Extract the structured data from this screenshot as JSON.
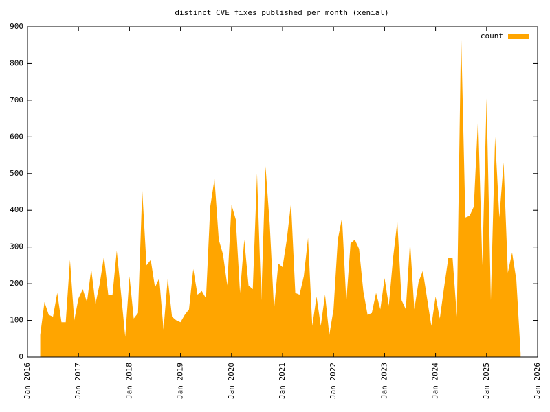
{
  "chart_data": {
    "type": "area",
    "title": "distinct CVE fixes published per month (xenial)",
    "x": [
      "Apr 2016",
      "May 2016",
      "Jun 2016",
      "Jul 2016",
      "Aug 2016",
      "Sep 2016",
      "Oct 2016",
      "Nov 2016",
      "Dec 2016",
      "Jan 2017",
      "Feb 2017",
      "Mar 2017",
      "Apr 2017",
      "May 2017",
      "Jun 2017",
      "Jul 2017",
      "Aug 2017",
      "Sep 2017",
      "Oct 2017",
      "Nov 2017",
      "Dec 2017",
      "Jan 2018",
      "Feb 2018",
      "Mar 2018",
      "Apr 2018",
      "May 2018",
      "Jun 2018",
      "Jul 2018",
      "Aug 2018",
      "Sep 2018",
      "Oct 2018",
      "Nov 2018",
      "Dec 2018",
      "Jan 2019",
      "Feb 2019",
      "Mar 2019",
      "Apr 2019",
      "May 2019",
      "Jun 2019",
      "Jul 2019",
      "Aug 2019",
      "Sep 2019",
      "Oct 2019",
      "Nov 2019",
      "Dec 2019",
      "Jan 2020",
      "Feb 2020",
      "Mar 2020",
      "Apr 2020",
      "May 2020",
      "Jun 2020",
      "Jul 2020",
      "Aug 2020",
      "Sep 2020",
      "Oct 2020",
      "Nov 2020",
      "Dec 2020",
      "Jan 2021",
      "Feb 2021",
      "Mar 2021",
      "Apr 2021",
      "May 2021",
      "Jun 2021",
      "Jul 2021",
      "Aug 2021",
      "Sep 2021",
      "Oct 2021",
      "Nov 2021",
      "Dec 2021",
      "Jan 2022",
      "Feb 2022",
      "Mar 2022",
      "Apr 2022",
      "May 2022",
      "Jun 2022",
      "Jul 2022",
      "Aug 2022",
      "Sep 2022",
      "Oct 2022",
      "Nov 2022",
      "Dec 2022",
      "Jan 2023",
      "Feb 2023",
      "Mar 2023",
      "Apr 2023",
      "May 2023",
      "Jun 2023",
      "Jul 2023",
      "Aug 2023",
      "Sep 2023",
      "Oct 2023",
      "Nov 2023",
      "Dec 2023",
      "Jan 2024",
      "Feb 2024",
      "Mar 2024",
      "Apr 2024",
      "May 2024",
      "Jun 2024",
      "Jul 2024",
      "Aug 2024",
      "Sep 2024",
      "Oct 2024",
      "Nov 2024",
      "Dec 2024",
      "Jan 2025",
      "Feb 2025",
      "Mar 2025",
      "Apr 2025",
      "May 2025",
      "Jun 2025",
      "Jul 2025",
      "Aug 2025",
      "Sep 2025"
    ],
    "series": [
      {
        "name": "count",
        "color": "#ffa500",
        "values": [
          60,
          150,
          115,
          110,
          175,
          95,
          95,
          265,
          100,
          160,
          185,
          150,
          240,
          145,
          200,
          275,
          170,
          170,
          290,
          175,
          55,
          220,
          105,
          120,
          455,
          250,
          265,
          190,
          215,
          75,
          215,
          110,
          100,
          95,
          115,
          130,
          240,
          170,
          180,
          160,
          410,
          485,
          320,
          280,
          195,
          415,
          375,
          175,
          320,
          195,
          185,
          500,
          155,
          520,
          360,
          130,
          255,
          245,
          320,
          420,
          175,
          170,
          220,
          325,
          85,
          165,
          85,
          170,
          60,
          130,
          320,
          380,
          150,
          310,
          320,
          295,
          180,
          115,
          120,
          175,
          130,
          215,
          140,
          270,
          370,
          155,
          130,
          315,
          130,
          205,
          235,
          160,
          85,
          165,
          105,
          190,
          270,
          270,
          110,
          890,
          380,
          385,
          410,
          655,
          250,
          705,
          155,
          600,
          380,
          530,
          230,
          285,
          210,
          10
        ]
      }
    ],
    "xlim": [
      "Jan 2016",
      "Jan 2026"
    ],
    "xticks": [
      "Jan 2016",
      "Jan 2017",
      "Jan 2018",
      "Jan 2019",
      "Jan 2020",
      "Jan 2021",
      "Jan 2022",
      "Jan 2023",
      "Jan 2024",
      "Jan 2025",
      "Jan 2026"
    ],
    "ylim": [
      0,
      900
    ],
    "yticks": [
      0,
      100,
      200,
      300,
      400,
      500,
      600,
      700,
      800,
      900
    ],
    "legend": "top-right"
  }
}
